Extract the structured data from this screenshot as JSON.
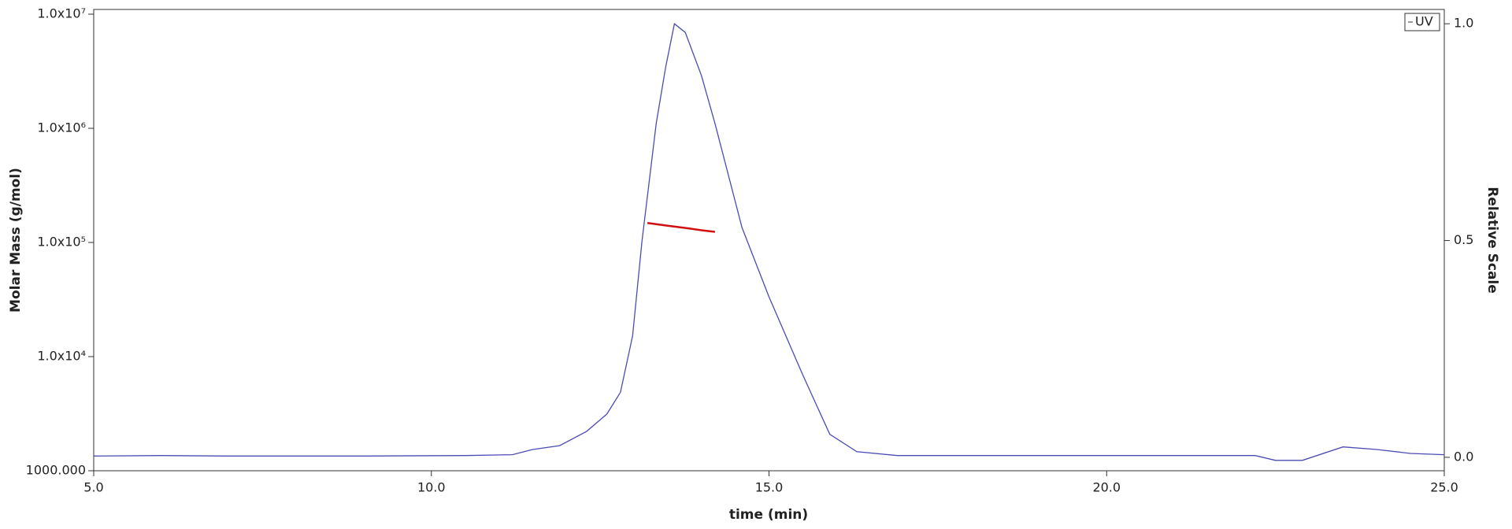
{
  "chart_data": {
    "type": "line",
    "x_label": "time (min)",
    "y_label": "Molar Mass (g/mol)",
    "y2_label": "Relative Scale",
    "xlim": [
      5,
      25
    ],
    "ylim": [
      1000,
      11000000
    ],
    "y2lim": [
      -0.031,
      1.033
    ],
    "log_y": true,
    "xticks": [
      {
        "value": 5,
        "label": "5.0"
      },
      {
        "value": 10,
        "label": "10.0"
      },
      {
        "value": 15,
        "label": "15.0"
      },
      {
        "value": 20,
        "label": "20.0"
      },
      {
        "value": 25,
        "label": "25.0"
      }
    ],
    "yticks": [
      {
        "value": 1000,
        "label": "1000.000"
      },
      {
        "value": 10000,
        "label": "1.0x10⁴"
      },
      {
        "value": 100000,
        "label": "1.0x10⁵"
      },
      {
        "value": 1000000,
        "label": "1.0x10⁶"
      },
      {
        "value": 10000000,
        "label": "1.0x10⁷"
      }
    ],
    "y2ticks": [
      {
        "value": 0,
        "label": "0.0"
      },
      {
        "value": 0.5,
        "label": "0.5"
      },
      {
        "value": 1,
        "label": "1.0"
      }
    ],
    "legend": "top-right",
    "series": [
      {
        "name": "UV",
        "color": "#4b4bb4",
        "axis": "y2",
        "x": [
          5,
          6,
          7,
          9,
          10.5,
          11.2,
          11.5,
          11.9,
          12.3,
          12.6,
          12.8,
          12.98,
          13.12,
          13.33,
          13.47,
          13.6,
          13.76,
          14.0,
          14.2,
          14.6,
          15.0,
          15.5,
          15.9,
          16.3,
          16.9,
          18,
          20,
          22.2,
          22.5,
          22.9,
          23.5,
          24.0,
          24.5,
          25
        ],
        "values": [
          0.003,
          0.004,
          0.003,
          0.003,
          0.004,
          0.006,
          0.018,
          0.027,
          0.06,
          0.1,
          0.15,
          0.28,
          0.5,
          0.77,
          0.9,
          1.0,
          0.98,
          0.88,
          0.77,
          0.53,
          0.37,
          0.19,
          0.053,
          0.013,
          0.004,
          0.004,
          0.004,
          0.004,
          -0.007,
          -0.007,
          0.024,
          0.018,
          0.009,
          0.006
        ]
      },
      {
        "name": "Molar Mass",
        "color": "#d01010",
        "axis": "y",
        "x": [
          13.2,
          13.5,
          13.8,
          14.0,
          14.2
        ],
        "values": [
          148000,
          140000,
          133000,
          128000,
          124000
        ]
      }
    ]
  }
}
